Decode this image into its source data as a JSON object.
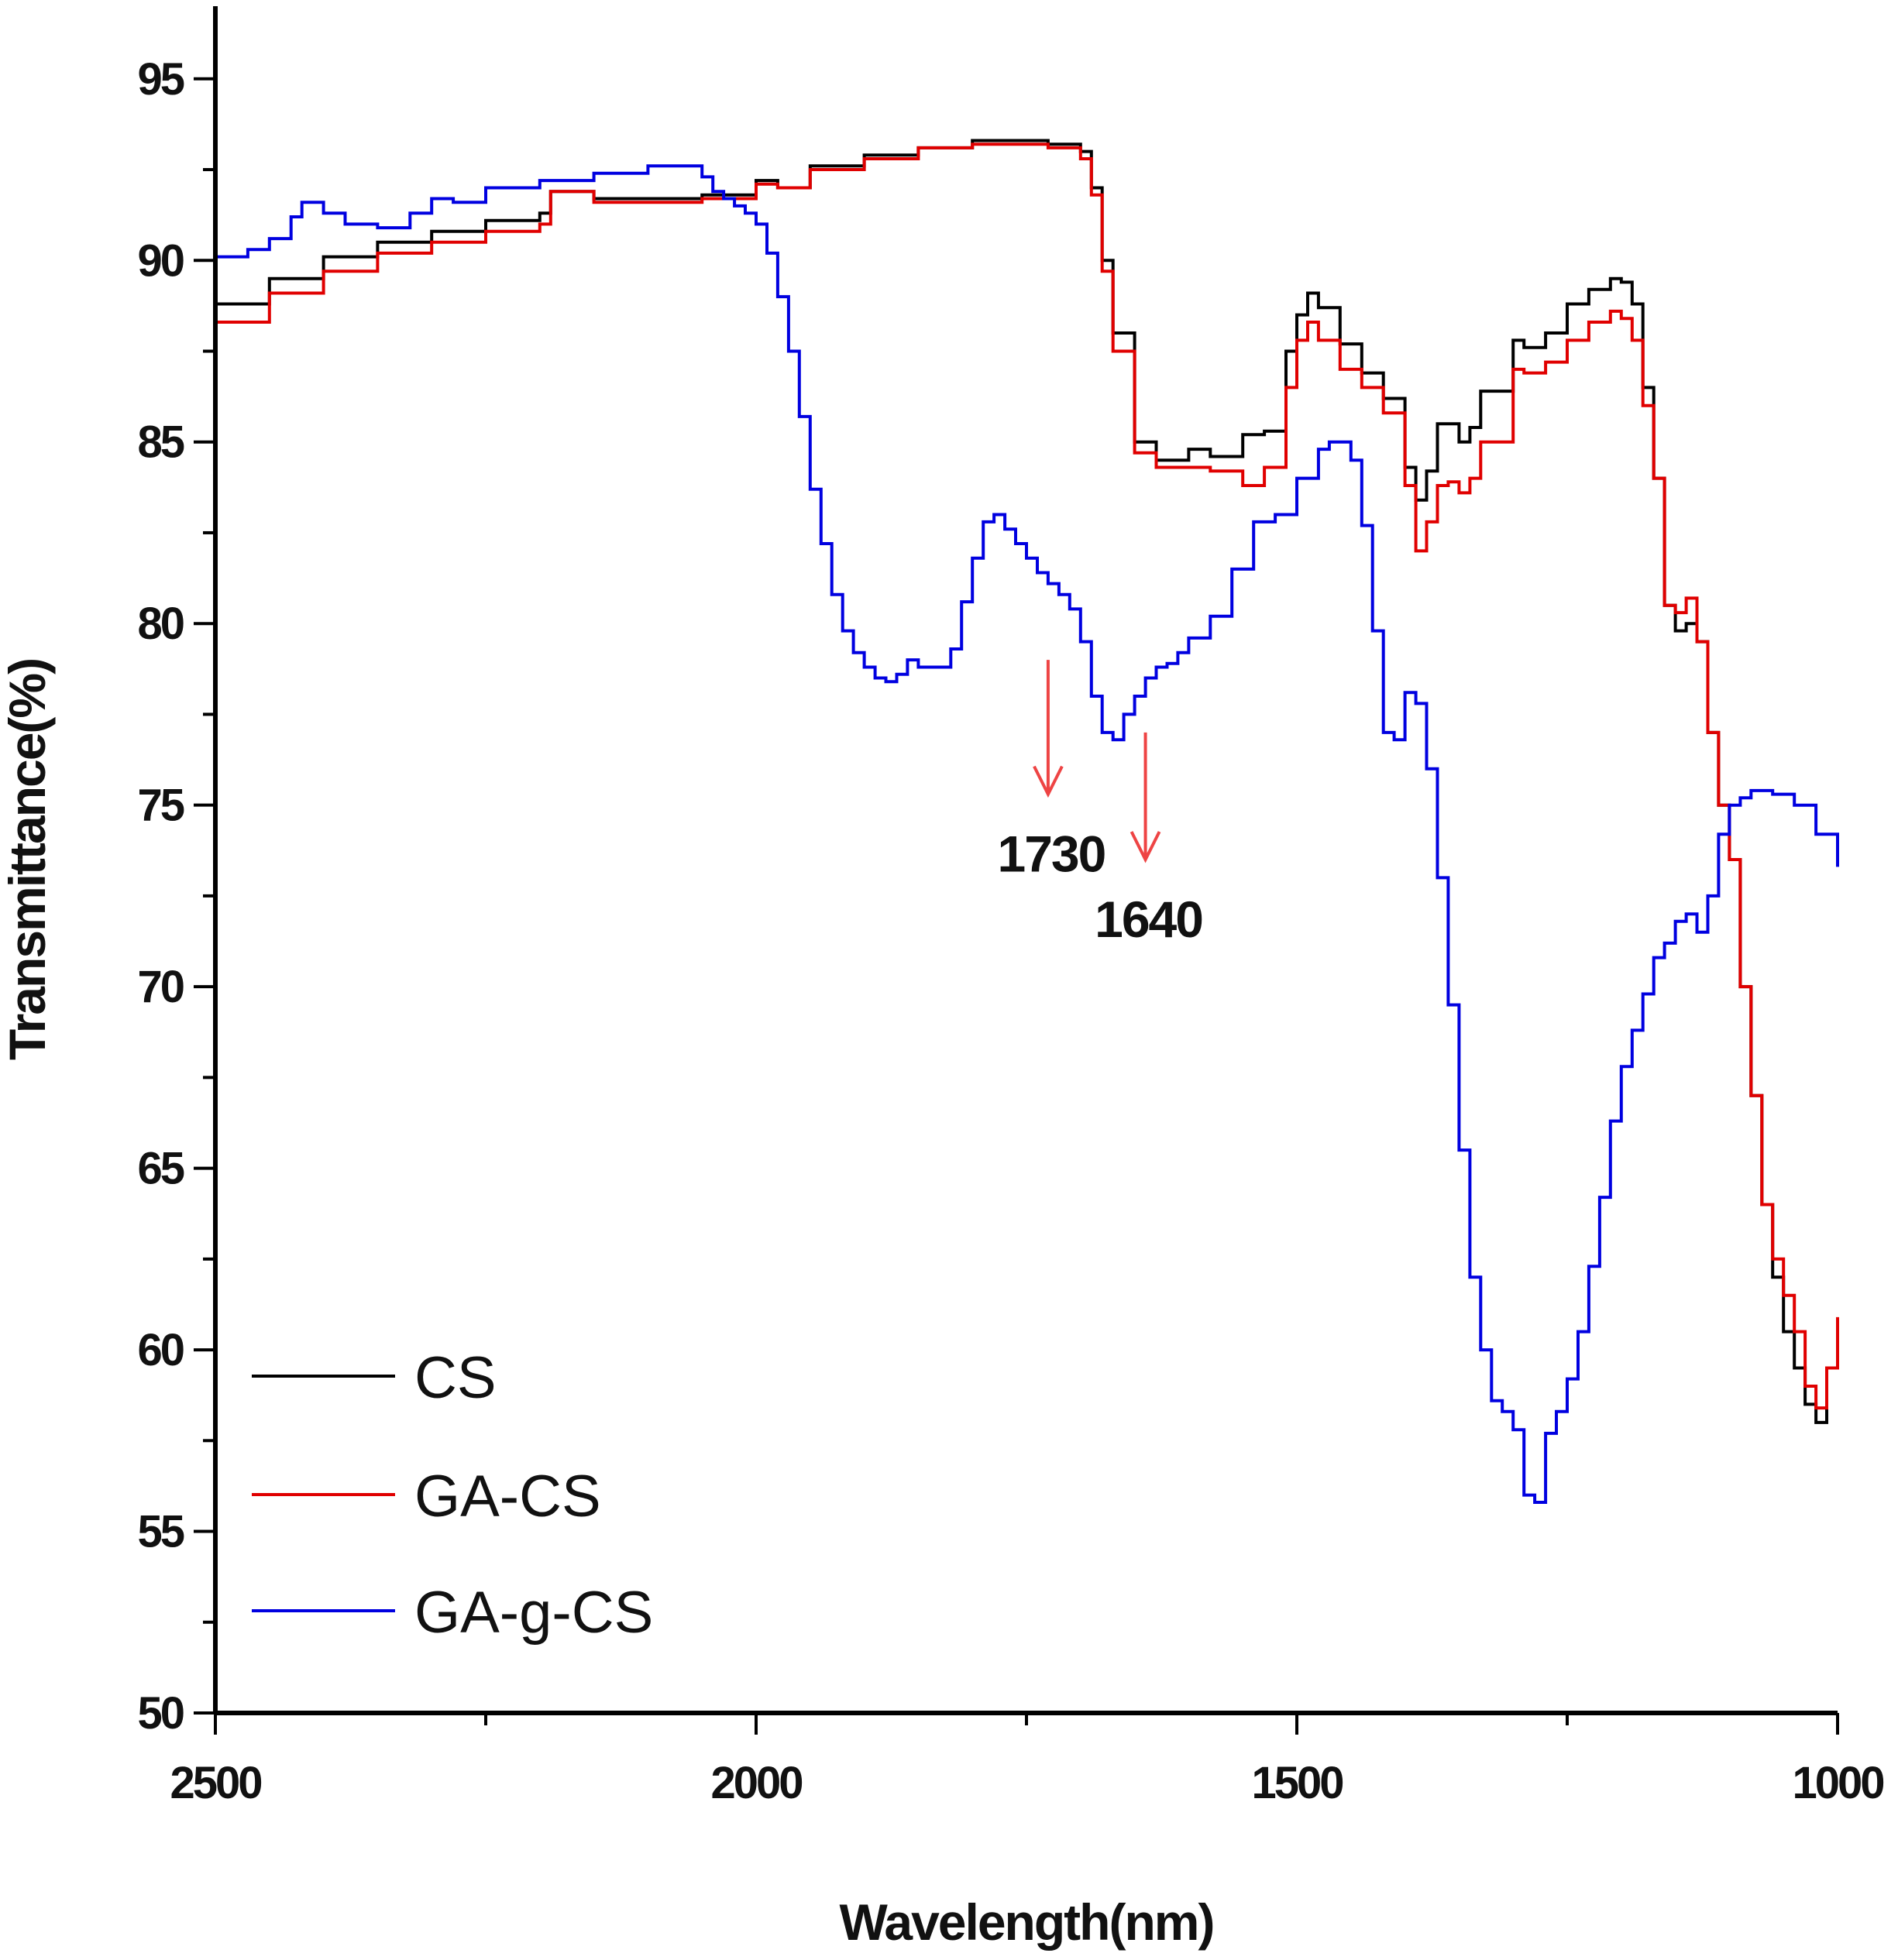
{
  "chart_data": {
    "type": "line",
    "title": "",
    "xlabel": "Wavelength(nm)",
    "ylabel": "Transmittance(%)",
    "xlim": [
      2500,
      1000
    ],
    "ylim": [
      50,
      97
    ],
    "x_reversed": true,
    "x_ticks": [
      2500,
      2000,
      1500,
      1000
    ],
    "y_ticks": [
      50,
      55,
      60,
      65,
      70,
      75,
      80,
      85,
      90,
      95
    ],
    "x_minor_ticks": [
      2250,
      1750,
      1250
    ],
    "grid": false,
    "legend_position": "bottom-left",
    "series": [
      {
        "name": "CS",
        "color": "#000000",
        "x": [
          2500,
          2450,
          2400,
          2350,
          2300,
          2250,
          2200,
          2190,
          2150,
          2100,
          2050,
          2000,
          1980,
          1950,
          1900,
          1850,
          1800,
          1780,
          1750,
          1730,
          1700,
          1690,
          1680,
          1670,
          1650,
          1630,
          1600,
          1580,
          1550,
          1530,
          1510,
          1500,
          1490,
          1480,
          1460,
          1440,
          1420,
          1400,
          1390,
          1380,
          1370,
          1360,
          1350,
          1340,
          1330,
          1300,
          1290,
          1270,
          1250,
          1230,
          1210,
          1200,
          1190,
          1180,
          1170,
          1160,
          1150,
          1140,
          1130,
          1120,
          1110,
          1100,
          1090,
          1080,
          1070,
          1060,
          1050,
          1040,
          1030,
          1020,
          1010,
          1000
        ],
        "y": [
          88.8,
          89.5,
          90.1,
          90.5,
          90.8,
          91.1,
          91.3,
          91.9,
          91.7,
          91.7,
          91.8,
          92.2,
          92.0,
          92.6,
          92.9,
          93.1,
          93.3,
          93.3,
          93.3,
          93.2,
          93.0,
          92.0,
          90.0,
          88.0,
          85.0,
          84.5,
          84.8,
          84.6,
          85.2,
          85.3,
          87.5,
          88.5,
          89.1,
          88.7,
          87.7,
          86.9,
          86.2,
          84.3,
          83.4,
          84.2,
          85.5,
          85.5,
          85.0,
          85.4,
          86.4,
          87.8,
          87.6,
          88.0,
          88.8,
          89.2,
          89.5,
          89.4,
          88.8,
          86.5,
          84.0,
          80.5,
          79.8,
          80.0,
          79.5,
          77.0,
          75.0,
          73.5,
          70.0,
          67.0,
          64.0,
          62.0,
          60.5,
          59.5,
          58.5,
          58.0,
          59.5,
          60.3
        ]
      },
      {
        "name": "GA-CS",
        "color": "#e00000",
        "x": [
          2500,
          2450,
          2400,
          2350,
          2300,
          2250,
          2200,
          2190,
          2150,
          2100,
          2050,
          2000,
          1980,
          1950,
          1900,
          1850,
          1800,
          1780,
          1750,
          1730,
          1700,
          1690,
          1680,
          1670,
          1650,
          1630,
          1600,
          1580,
          1550,
          1530,
          1510,
          1500,
          1490,
          1480,
          1460,
          1440,
          1420,
          1400,
          1390,
          1380,
          1370,
          1360,
          1350,
          1340,
          1330,
          1300,
          1290,
          1270,
          1250,
          1230,
          1210,
          1200,
          1190,
          1180,
          1170,
          1160,
          1150,
          1140,
          1130,
          1120,
          1110,
          1100,
          1090,
          1080,
          1070,
          1060,
          1050,
          1040,
          1030,
          1020,
          1010,
          1000
        ],
        "y": [
          88.3,
          89.1,
          89.7,
          90.2,
          90.5,
          90.8,
          91.0,
          91.9,
          91.6,
          91.6,
          91.7,
          92.1,
          92.0,
          92.5,
          92.8,
          93.1,
          93.2,
          93.2,
          93.2,
          93.1,
          92.8,
          91.8,
          89.7,
          87.5,
          84.7,
          84.3,
          84.3,
          84.2,
          83.8,
          84.3,
          86.5,
          87.8,
          88.3,
          87.8,
          87.0,
          86.5,
          85.8,
          83.8,
          82.0,
          82.8,
          83.8,
          83.9,
          83.6,
          84.0,
          85.0,
          87.0,
          86.9,
          87.2,
          87.8,
          88.3,
          88.6,
          88.4,
          87.8,
          86.0,
          84.0,
          80.5,
          80.3,
          80.7,
          79.5,
          77.0,
          75.0,
          73.5,
          70.0,
          67.0,
          64.0,
          62.5,
          61.5,
          60.5,
          59.0,
          58.4,
          59.5,
          60.9
        ]
      },
      {
        "name": "GA-g-CS",
        "color": "#0000e0",
        "x": [
          2500,
          2470,
          2450,
          2430,
          2420,
          2400,
          2380,
          2350,
          2320,
          2300,
          2280,
          2250,
          2200,
          2150,
          2100,
          2050,
          2040,
          2030,
          2020,
          2010,
          2000,
          1990,
          1980,
          1970,
          1960,
          1950,
          1940,
          1930,
          1920,
          1910,
          1900,
          1890,
          1880,
          1870,
          1860,
          1850,
          1830,
          1820,
          1810,
          1800,
          1790,
          1780,
          1770,
          1760,
          1750,
          1740,
          1730,
          1720,
          1710,
          1700,
          1690,
          1680,
          1670,
          1660,
          1650,
          1640,
          1630,
          1620,
          1610,
          1600,
          1580,
          1560,
          1540,
          1520,
          1500,
          1480,
          1470,
          1460,
          1450,
          1440,
          1430,
          1420,
          1410,
          1400,
          1390,
          1380,
          1370,
          1360,
          1350,
          1340,
          1330,
          1320,
          1310,
          1300,
          1290,
          1280,
          1270,
          1260,
          1250,
          1240,
          1230,
          1220,
          1210,
          1200,
          1190,
          1180,
          1170,
          1160,
          1150,
          1140,
          1130,
          1120,
          1110,
          1100,
          1090,
          1080,
          1060,
          1040,
          1020,
          1000
        ],
        "y": [
          90.1,
          90.3,
          90.6,
          91.2,
          91.6,
          91.3,
          91.0,
          90.9,
          91.3,
          91.7,
          91.6,
          92.0,
          92.2,
          92.4,
          92.6,
          92.3,
          91.9,
          91.7,
          91.5,
          91.3,
          91.0,
          90.2,
          89.0,
          87.5,
          85.7,
          83.7,
          82.2,
          80.8,
          79.8,
          79.2,
          78.8,
          78.5,
          78.4,
          78.6,
          79.0,
          78.8,
          78.8,
          79.3,
          80.6,
          81.8,
          82.8,
          83.0,
          82.6,
          82.2,
          81.8,
          81.4,
          81.1,
          80.8,
          80.4,
          79.5,
          78.0,
          77.0,
          76.8,
          77.5,
          78.0,
          78.5,
          78.8,
          78.9,
          79.2,
          79.6,
          80.2,
          81.5,
          82.8,
          83.0,
          84.0,
          84.8,
          85.0,
          85.0,
          84.5,
          82.7,
          79.8,
          77.0,
          76.8,
          78.1,
          77.8,
          76.0,
          73.0,
          69.5,
          65.5,
          62.0,
          60.0,
          58.6,
          58.3,
          57.8,
          56.0,
          55.8,
          57.7,
          58.3,
          59.2,
          60.5,
          62.3,
          64.2,
          66.3,
          67.8,
          68.8,
          69.8,
          70.8,
          71.2,
          71.8,
          72.0,
          71.5,
          72.5,
          74.2,
          75.0,
          75.2,
          75.4,
          75.3,
          75.0,
          74.2,
          73.3
        ],
        "note": ""
      }
    ],
    "annotations": [
      {
        "text": "1730",
        "x": 1730,
        "arrow_from": 79.0,
        "arrow_to": 75.3,
        "color": "#ee4444"
      },
      {
        "text": "1640",
        "x": 1640,
        "arrow_from": 77.0,
        "arrow_to": 73.5,
        "color": "#ee4444"
      }
    ]
  }
}
